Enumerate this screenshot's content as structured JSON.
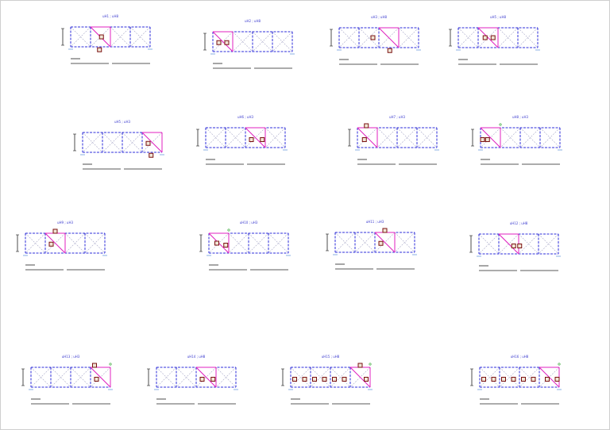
{
  "sheet": {
    "colors": {
      "frame": "#2f2fdb",
      "brace": "#a8a8c8",
      "highlight": "#e020c0",
      "marker": "#7a1010",
      "marker_fill": "#f0e6d6",
      "title": "#4040d0",
      "leader": "#3a7ad0",
      "note": "#20a020",
      "underline": "#202020"
    }
  },
  "panels": [
    {
      "title": "uH1 ; uH8",
      "bays": 4,
      "frames": [
        0
      ],
      "highlight": 1,
      "markers": [
        [
          1,
          0.55,
          0.5
        ],
        [
          1,
          0.45,
          1.15
        ]
      ],
      "note": false
    },
    {
      "title": "uH2 ; uH8",
      "bays": 4,
      "frames": [
        0
      ],
      "highlight": 0,
      "markers": [
        [
          0,
          0.3,
          0.55
        ],
        [
          0,
          0.7,
          0.55
        ]
      ],
      "note": false
    },
    {
      "title": "uH3 ; uH8",
      "bays": 4,
      "frames": [
        0
      ],
      "highlight": 2,
      "markers": [
        [
          1,
          0.7,
          0.5
        ],
        [
          2,
          0.55,
          1.15
        ]
      ],
      "note": false
    },
    {
      "title": "uH5 ; uH8",
      "bays": 4,
      "frames": [
        0
      ],
      "highlight": 1,
      "markers": [
        [
          1,
          0.35,
          0.5
        ],
        [
          1,
          0.75,
          0.5
        ]
      ],
      "note": false
    },
    {
      "title": "uH5 ; uH3",
      "bays": 4,
      "frames": [
        0
      ],
      "highlight": 3,
      "markers": [
        [
          3,
          0.3,
          0.55
        ],
        [
          3,
          0.45,
          1.15
        ]
      ],
      "note": false
    },
    {
      "title": "uH6 ; uH3",
      "bays": 4,
      "frames": [
        0
      ],
      "highlight": 2,
      "markers": [
        [
          2,
          0.3,
          0.6
        ],
        [
          2,
          0.85,
          0.6
        ]
      ],
      "note": false
    },
    {
      "title": "uH7 ; uH3",
      "bays": 4,
      "frames": [
        0
      ],
      "highlight": 0,
      "markers": [
        [
          0,
          0.45,
          -0.1
        ],
        [
          0,
          0.35,
          0.6
        ]
      ],
      "note": false
    },
    {
      "title": "uH8 ; uH3",
      "bays": 4,
      "frames": [
        0
      ],
      "highlight": 0,
      "markers": [
        [
          0,
          0.1,
          0.6
        ],
        [
          0,
          0.35,
          0.6
        ]
      ],
      "note": true
    },
    {
      "title": "uH9 ; uH3",
      "bays": 4,
      "frames": [
        0
      ],
      "highlight": 1,
      "markers": [
        [
          1,
          0.5,
          -0.1
        ],
        [
          1,
          0.3,
          0.55
        ]
      ],
      "note": false
    },
    {
      "title": "uH10 ; uH3",
      "bays": 4,
      "frames": [
        0
      ],
      "highlight": 0,
      "markers": [
        [
          0,
          0.4,
          0.5
        ],
        [
          0,
          0.85,
          0.6
        ]
      ],
      "note": true
    },
    {
      "title": "uH11 ; uH3",
      "bays": 4,
      "frames": [
        0
      ],
      "highlight": 2,
      "markers": [
        [
          2,
          0.5,
          -0.1
        ],
        [
          2,
          0.3,
          0.55
        ]
      ],
      "note": false
    },
    {
      "title": "uH12 ; uH8",
      "bays": 4,
      "frames": [
        0
      ],
      "highlight": 1,
      "markers": [
        [
          1,
          0.75,
          0.6
        ],
        [
          1,
          1.05,
          0.6
        ]
      ],
      "note": false
    },
    {
      "title": "uH13 ; uH3",
      "bays": 4,
      "frames": [
        0
      ],
      "highlight": 3,
      "markers": [
        [
          3,
          0.2,
          -0.1
        ],
        [
          3,
          0.3,
          0.6
        ]
      ],
      "note": true
    },
    {
      "title": "uH14 ; uH8",
      "bays": 4,
      "frames": [
        0
      ],
      "highlight": 2,
      "markers": [
        [
          2,
          0.3,
          0.6
        ],
        [
          2,
          0.85,
          0.6
        ]
      ],
      "note": false
    },
    {
      "title": "uH15 ; uH8",
      "bays": 4,
      "frames": [
        0
      ],
      "highlight": 3,
      "markers": [
        [
          0,
          0.2,
          0.6
        ],
        [
          0,
          0.7,
          0.6
        ],
        [
          1,
          0.2,
          0.6
        ],
        [
          1,
          0.7,
          0.6
        ],
        [
          2,
          0.2,
          0.6
        ],
        [
          2,
          0.7,
          0.6
        ],
        [
          3,
          0.5,
          -0.1
        ],
        [
          3,
          0.8,
          0.6
        ]
      ],
      "note": true
    },
    {
      "title": "uH16 ; uH8",
      "bays": 4,
      "frames": [
        0
      ],
      "highlight": 3,
      "markers": [
        [
          0,
          0.2,
          0.6
        ],
        [
          0,
          0.7,
          0.6
        ],
        [
          1,
          0.2,
          0.6
        ],
        [
          1,
          0.7,
          0.6
        ],
        [
          2,
          0.2,
          0.6
        ],
        [
          2,
          0.7,
          0.6
        ],
        [
          3,
          0.4,
          0.6
        ],
        [
          3,
          0.9,
          0.6
        ]
      ],
      "note": true
    }
  ]
}
